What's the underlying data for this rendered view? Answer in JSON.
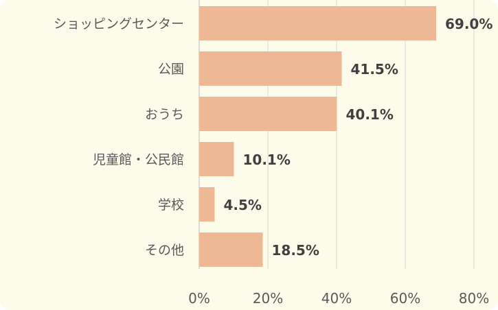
{
  "chart_data": {
    "type": "bar",
    "orientation": "horizontal",
    "title": "",
    "xlabel": "",
    "ylabel": "",
    "categories": [
      "ショッピングセンター",
      "公園",
      "おうち",
      "児童館・公民館",
      "学校",
      "その他"
    ],
    "values": [
      69.0,
      41.5,
      40.1,
      10.1,
      4.5,
      18.5
    ],
    "data_labels": [
      "69.0%",
      "41.5%",
      "40.1%",
      "10.1%",
      "4.5%",
      "18.5%"
    ],
    "xlim": [
      0,
      80
    ],
    "xticks": [
      "0%",
      "20%",
      "40%",
      "60%",
      "80%"
    ],
    "grid": "vertical",
    "legend": "none",
    "colors": {
      "bar": "#edb893",
      "background": "#fdfbea",
      "gridline": "#d9d9d9",
      "axis": "#bfbfbf"
    }
  }
}
